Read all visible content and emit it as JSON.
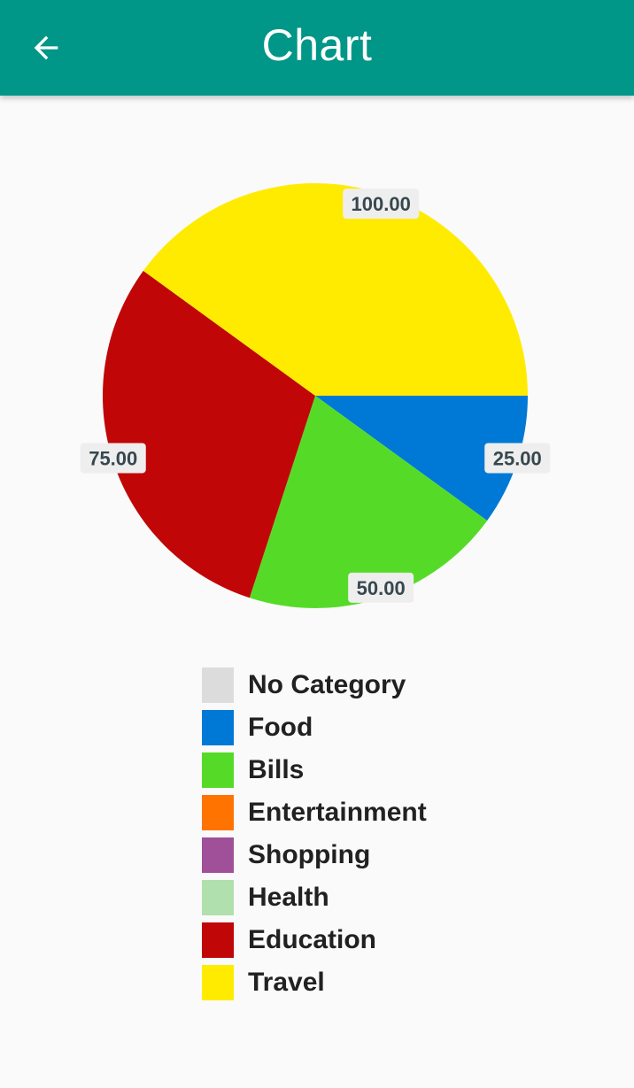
{
  "app_bar": {
    "title": "Chart",
    "back_icon": "arrow-left-icon"
  },
  "chart_data": {
    "type": "pie",
    "slices": [
      {
        "category": "Food",
        "value": 25.0,
        "label": "25.00",
        "color": "#0079D6"
      },
      {
        "category": "Bills",
        "value": 50.0,
        "label": "50.00",
        "color": "#55DB27"
      },
      {
        "category": "Education",
        "value": 75.0,
        "label": "75.00",
        "color": "#C00606"
      },
      {
        "category": "Travel",
        "value": 100.0,
        "label": "100.00",
        "color": "#FFEB00"
      }
    ],
    "legend": [
      {
        "label": "No Category",
        "color": "#DCDCDC"
      },
      {
        "label": "Food",
        "color": "#0079D6"
      },
      {
        "label": "Bills",
        "color": "#55DB27"
      },
      {
        "label": "Entertainment",
        "color": "#FF7300"
      },
      {
        "label": "Shopping",
        "color": "#A05098"
      },
      {
        "label": "Health",
        "color": "#B0E0AE"
      },
      {
        "label": "Education",
        "color": "#C00606"
      },
      {
        "label": "Travel",
        "color": "#FFEB00"
      }
    ],
    "legend_position": "bottom"
  }
}
